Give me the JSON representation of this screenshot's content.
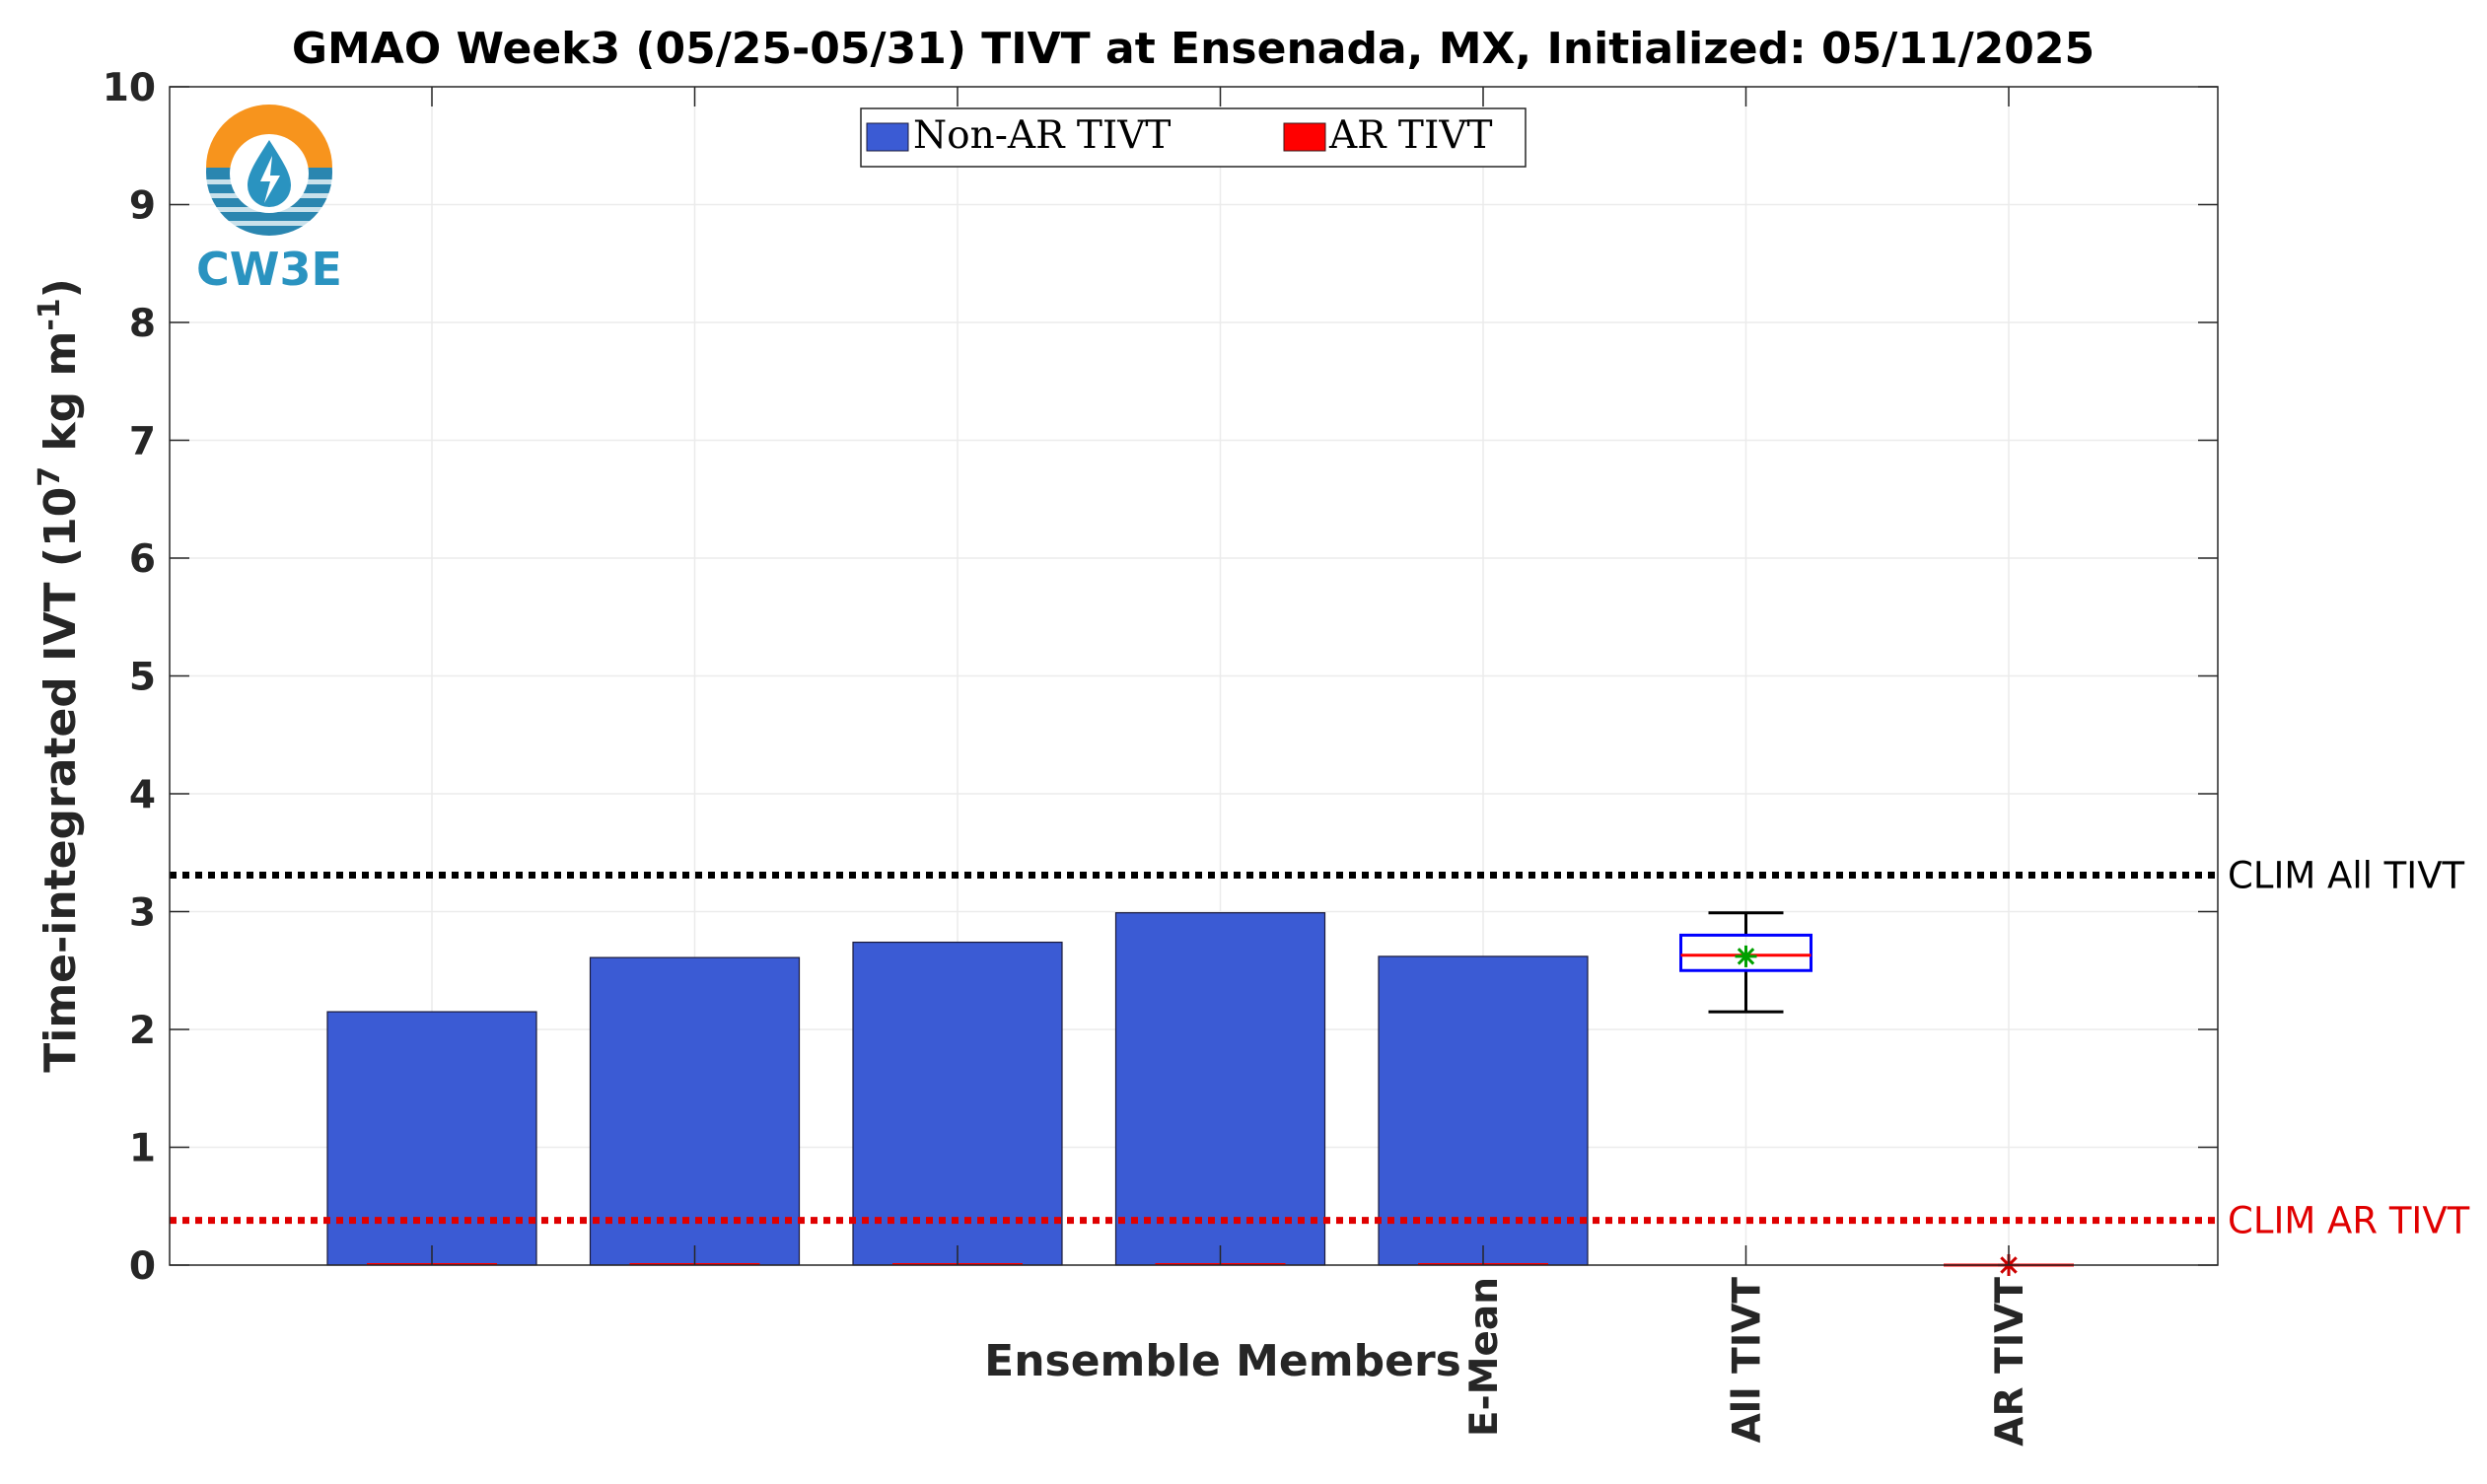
{
  "chart_data": {
    "type": "bar",
    "title": "GMAO Week3 (05/25-05/31) TIVT at Ensenada, MX, Initialized: 05/11/2025",
    "xlabel": "Ensemble Members",
    "ylabel": "Time-integrated IVT (10",
    "ylabel_sup1": "7",
    "ylabel_mid": " kg m",
    "ylabel_sup2": "-1",
    "ylabel_end": ")",
    "ylim": [
      0,
      10
    ],
    "yticks": [
      "0",
      "1",
      "2",
      "3",
      "4",
      "5",
      "6",
      "7",
      "8",
      "9",
      "10"
    ],
    "grid": true,
    "legend_position": "top",
    "categories": [
      "",
      "",
      "",
      "",
      "E-Mean",
      "All TIVT",
      "AR TIVT"
    ],
    "series": [
      {
        "name": "Non-AR TIVT",
        "color": "#3b5bd4",
        "values": [
          2.15,
          2.61,
          2.74,
          2.99,
          2.62,
          null,
          null
        ]
      },
      {
        "name": "AR TIVT",
        "color": "#ff0000",
        "values": [
          0,
          0,
          0,
          0,
          0,
          null,
          null
        ]
      }
    ],
    "boxplots": [
      {
        "category": "All TIVT",
        "min": 2.15,
        "q1": 2.5,
        "median": 2.63,
        "q3": 2.8,
        "max": 2.99,
        "mean": 2.62,
        "box_color": "#0000ff",
        "median_color": "#ff0000",
        "mean_color": "#00a000"
      },
      {
        "category": "AR TIVT",
        "min": 0,
        "q1": 0,
        "median": 0,
        "q3": 0,
        "max": 0,
        "mean": 0,
        "box_color": "#0000ff",
        "median_color": "#ff0000",
        "mean_color": "#cc0000"
      }
    ],
    "reference_lines": [
      {
        "label": "CLIM All TIVT",
        "value": 3.31,
        "color": "#000000"
      },
      {
        "label": "CLIM AR TIVT",
        "value": 0.38,
        "color": "#e00000"
      }
    ]
  },
  "logo": {
    "text": "CW3E"
  }
}
